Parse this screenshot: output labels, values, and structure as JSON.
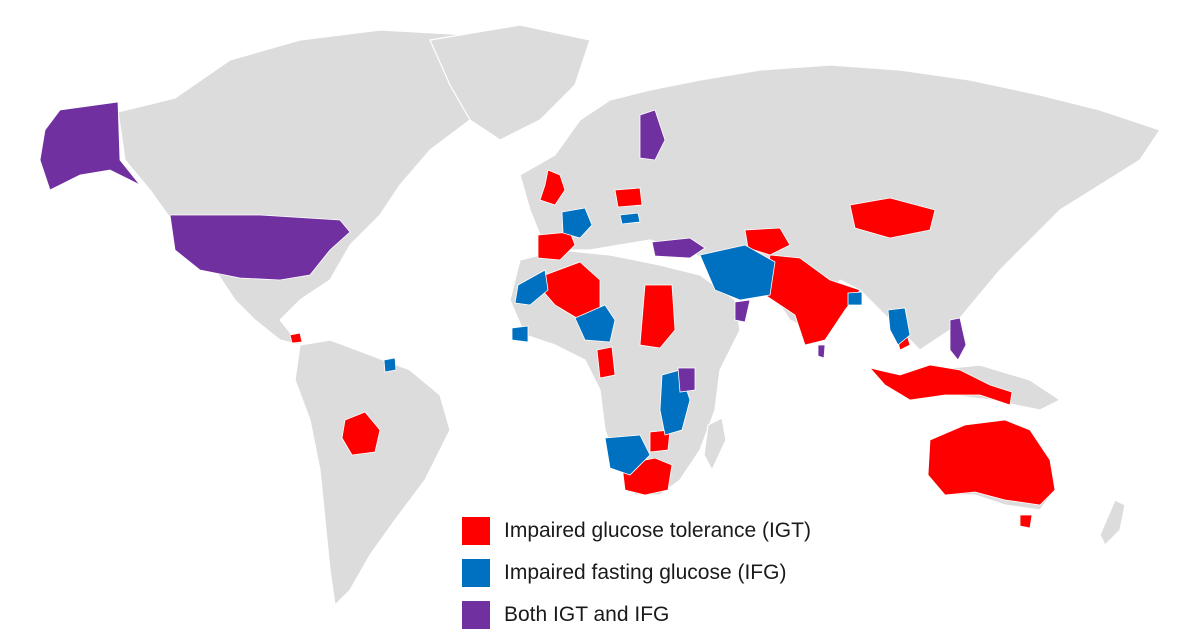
{
  "colors": {
    "land": "#dcdcdc",
    "igt": "#ff0000",
    "ifg": "#0070c0",
    "both": "#7030a0"
  },
  "legend": [
    {
      "key": "igt",
      "label": "Impaired glucose tolerance (IGT)",
      "color": "#ff0000"
    },
    {
      "key": "ifg",
      "label": "Impaired fasting glucose (IFG)",
      "color": "#0070c0"
    },
    {
      "key": "both",
      "label": "Both IGT and IFG",
      "color": "#7030a0"
    }
  ]
}
